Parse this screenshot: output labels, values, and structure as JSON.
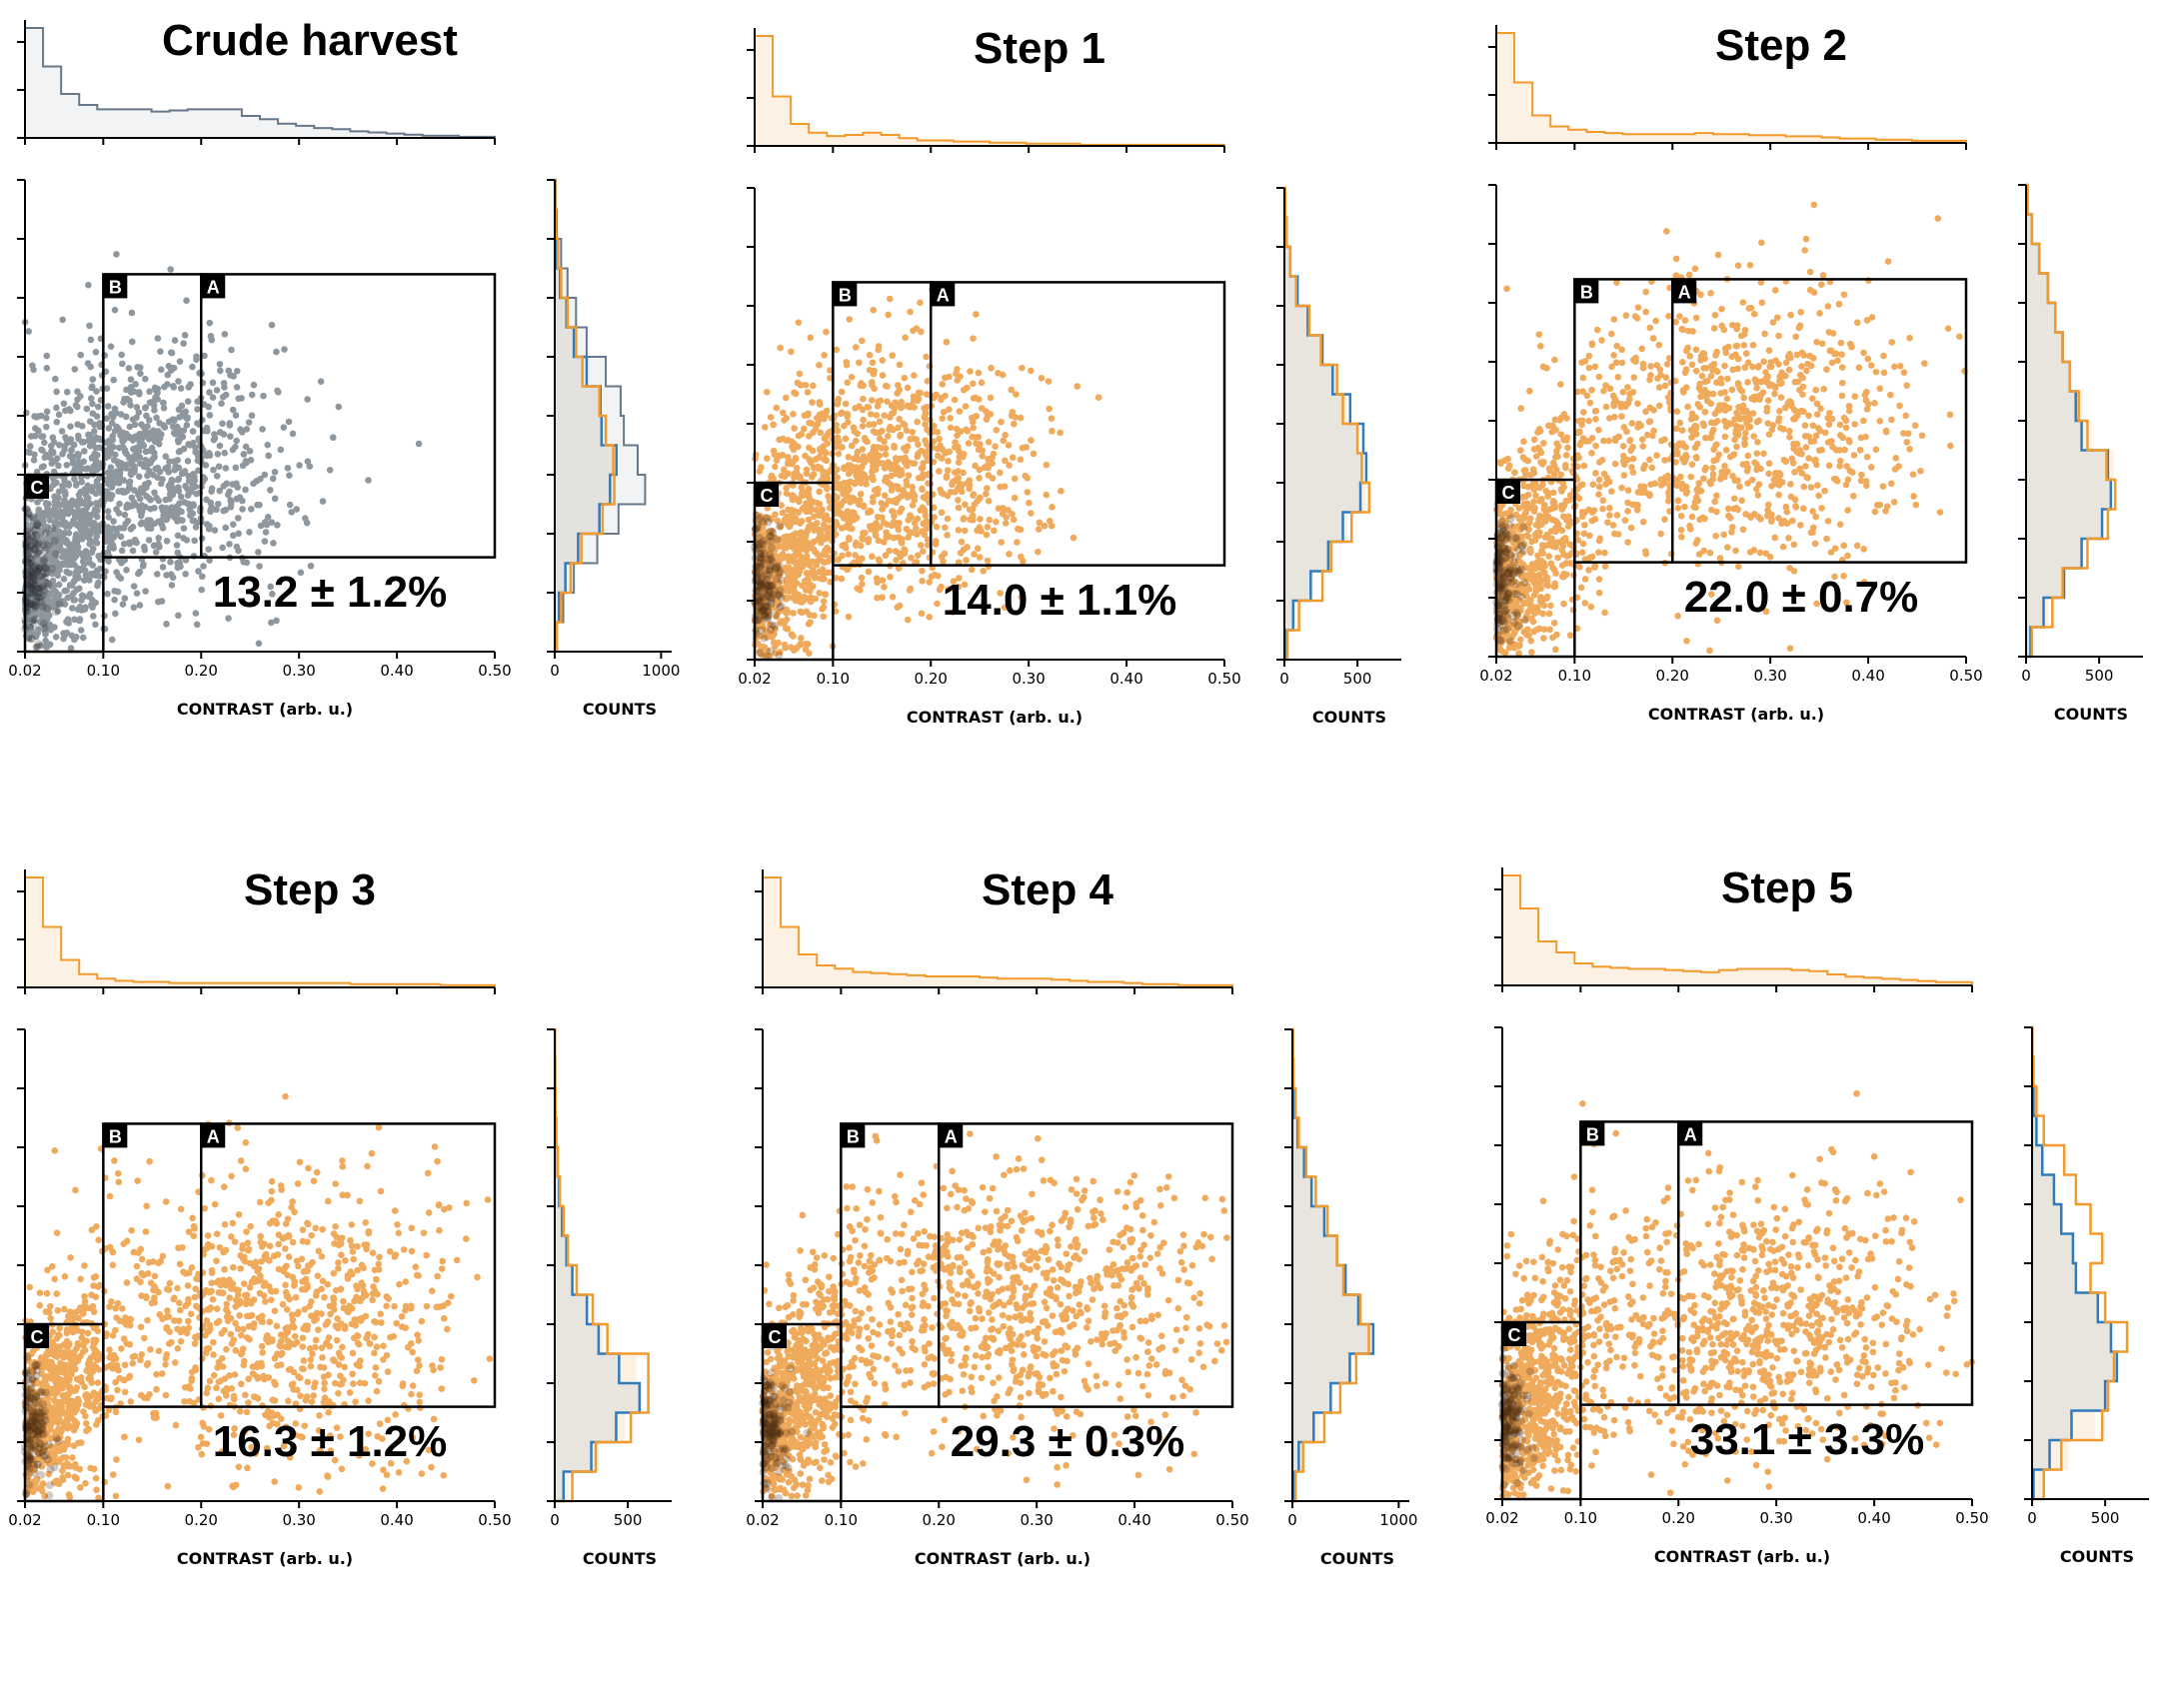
{
  "chart_data": [
    {
      "type": "scatter",
      "title": "Crude harvest",
      "annotation": "13.2 ± 1.2%",
      "xlabel": "CONTRAST (arb. u.)",
      "side_xlabel": "COUNTS",
      "xticks": [
        "0.02",
        "0.10",
        "0.20",
        "0.30",
        "0.40",
        "0.50"
      ],
      "xlim": [
        0.02,
        0.5
      ],
      "side_ticks": [
        "0",
        "1000"
      ],
      "side_max": 1100,
      "color": "#8f979e",
      "line": "#66788a",
      "fill": "#f1f3f5",
      "side_fill": "#e4e2de",
      "cloud": {
        "cx": 0.15,
        "cy": 3.1,
        "sx": 0.07,
        "sy": 1.1
      },
      "top_hist": [
        1,
        0.65,
        0.4,
        0.3,
        0.26,
        0.26,
        0.26,
        0.24,
        0.25,
        0.26,
        0.26,
        0.26,
        0.2,
        0.17,
        0.13,
        0.11,
        0.09,
        0.08,
        0.06,
        0.05,
        0.04,
        0.03,
        0.02,
        0.02,
        0.01,
        0.01
      ],
      "side_gray": [
        20,
        80,
        180,
        400,
        600,
        850,
        780,
        650,
        620,
        480,
        300,
        200,
        120,
        60,
        20,
        10
      ],
      "side_orange": [
        20,
        60,
        150,
        250,
        450,
        560,
        550,
        480,
        420,
        260,
        200,
        120,
        60,
        30,
        10,
        5
      ],
      "side_blue": [
        10,
        40,
        100,
        220,
        420,
        520,
        580,
        440,
        430,
        300,
        180,
        110,
        50,
        20,
        8,
        4
      ]
    },
    {
      "type": "scatter",
      "title": "Step 1",
      "annotation": "14.0 ± 1.1%",
      "xlabel": "CONTRAST (arb. u.)",
      "side_xlabel": "COUNTS",
      "xticks": [
        "0.02",
        "0.10",
        "0.20",
        "0.30",
        "0.40",
        "0.50"
      ],
      "xlim": [
        0.02,
        0.5
      ],
      "side_ticks": [
        "0",
        "500"
      ],
      "side_max": 800,
      "color": "#f0aa5c",
      "line": "#f39a2b",
      "fill": "#fdf1e4",
      "side_fill": "#e8e4de",
      "cloud": {
        "cx": 0.16,
        "cy": 3.1,
        "sx": 0.07,
        "sy": 1.1
      },
      "top_hist": [
        1,
        0.45,
        0.2,
        0.12,
        0.09,
        0.1,
        0.12,
        0.1,
        0.07,
        0.05,
        0.05,
        0.04,
        0.04,
        0.03,
        0.03,
        0.02,
        0.02,
        0.02,
        0.01,
        0.01,
        0.01,
        0.01,
        0.01,
        0.01,
        0.01,
        0.01
      ],
      "side_gray": [
        20,
        80,
        200,
        330,
        430,
        560,
        520,
        470,
        430,
        350,
        230,
        160,
        90,
        40,
        15,
        5
      ],
      "side_orange": [
        20,
        100,
        260,
        320,
        460,
        580,
        530,
        500,
        400,
        360,
        250,
        170,
        80,
        40,
        15,
        5
      ],
      "side_blue": [
        10,
        60,
        180,
        300,
        400,
        520,
        560,
        540,
        450,
        330,
        260,
        160,
        90,
        40,
        15,
        5
      ]
    },
    {
      "type": "scatter",
      "title": "Step 2",
      "annotation": "22.0 ± 0.7%",
      "xlabel": "CONTRAST (arb. u.)",
      "side_xlabel": "COUNTS",
      "xticks": [
        "0.02",
        "0.10",
        "0.20",
        "0.30",
        "0.40",
        "0.50"
      ],
      "xlim": [
        0.02,
        0.5
      ],
      "side_ticks": [
        "0",
        "500"
      ],
      "side_max": 800,
      "color": "#f0aa5c",
      "line": "#f39a2b",
      "fill": "#fdf1e4",
      "side_fill": "#e8e4de",
      "cloud": {
        "cx": 0.27,
        "cy": 3.9,
        "sx": 0.09,
        "sy": 1.2
      },
      "top_hist": [
        1,
        0.55,
        0.25,
        0.15,
        0.12,
        0.1,
        0.09,
        0.08,
        0.08,
        0.08,
        0.08,
        0.09,
        0.08,
        0.08,
        0.07,
        0.07,
        0.06,
        0.06,
        0.05,
        0.04,
        0.04,
        0.03,
        0.03,
        0.02,
        0.02,
        0.02
      ],
      "side_gray": [
        30,
        150,
        250,
        380,
        480,
        560,
        600,
        450,
        380,
        300,
        250,
        200,
        150,
        90,
        40,
        10
      ],
      "side_orange": [
        40,
        180,
        250,
        420,
        560,
        610,
        550,
        420,
        360,
        300,
        250,
        200,
        150,
        90,
        40,
        10
      ],
      "side_blue": [
        30,
        120,
        260,
        380,
        520,
        580,
        560,
        380,
        340,
        300,
        250,
        200,
        150,
        90,
        40,
        10
      ]
    },
    {
      "type": "scatter",
      "title": "Step 3",
      "annotation": "16.3 ± 1.2%",
      "xlabel": "CONTRAST (arb. u.)",
      "side_xlabel": "COUNTS",
      "xticks": [
        "0.02",
        "0.10",
        "0.20",
        "0.30",
        "0.40",
        "0.50"
      ],
      "xlim": [
        0.02,
        0.5
      ],
      "side_ticks": [
        "0",
        "500"
      ],
      "side_max": 800,
      "color": "#f0aa5c",
      "line": "#f39a2b",
      "fill": "#fdf1e4",
      "side_fill": "#e8e4de",
      "cloud": {
        "cx": 0.28,
        "cy": 3.1,
        "sx": 0.09,
        "sy": 1.2
      },
      "top_hist": [
        1,
        0.55,
        0.25,
        0.12,
        0.08,
        0.06,
        0.05,
        0.05,
        0.04,
        0.04,
        0.04,
        0.04,
        0.04,
        0.04,
        0.04,
        0.04,
        0.04,
        0.04,
        0.03,
        0.03,
        0.03,
        0.03,
        0.03,
        0.02,
        0.02,
        0.02
      ],
      "side_gray": [
        100,
        300,
        480,
        600,
        560,
        330,
        220,
        130,
        80,
        50,
        30,
        20,
        10,
        5,
        3,
        2
      ],
      "side_orange": [
        120,
        280,
        520,
        640,
        640,
        360,
        260,
        150,
        90,
        60,
        35,
        20,
        10,
        5,
        3,
        2
      ],
      "side_blue": [
        60,
        250,
        420,
        580,
        440,
        300,
        220,
        120,
        80,
        50,
        30,
        20,
        10,
        5,
        3,
        2
      ]
    },
    {
      "type": "scatter",
      "title": "Step 4",
      "annotation": "29.3 ± 0.3%",
      "xlabel": "CONTRAST (arb. u.)",
      "side_xlabel": "COUNTS",
      "xticks": [
        "0.02",
        "0.10",
        "0.20",
        "0.30",
        "0.40",
        "0.50"
      ],
      "xlim": [
        0.02,
        0.5
      ],
      "side_ticks": [
        "0",
        "1000"
      ],
      "side_max": 1100,
      "color": "#f0aa5c",
      "line": "#f39a2b",
      "fill": "#fdf1e4",
      "side_fill": "#e8e4de",
      "cloud": {
        "cx": 0.28,
        "cy": 3.3,
        "sx": 0.1,
        "sy": 1.1
      },
      "top_hist": [
        1,
        0.55,
        0.3,
        0.2,
        0.17,
        0.14,
        0.13,
        0.12,
        0.11,
        0.1,
        0.1,
        0.1,
        0.09,
        0.08,
        0.08,
        0.08,
        0.07,
        0.06,
        0.05,
        0.05,
        0.04,
        0.03,
        0.03,
        0.02,
        0.02,
        0.02
      ],
      "side_gray": [
        30,
        120,
        260,
        380,
        560,
        700,
        600,
        450,
        380,
        300,
        200,
        120,
        60,
        30,
        10,
        5
      ],
      "side_orange": [
        30,
        100,
        300,
        450,
        600,
        720,
        640,
        480,
        420,
        330,
        220,
        130,
        60,
        30,
        10,
        5
      ],
      "side_blue": [
        20,
        60,
        200,
        360,
        540,
        760,
        620,
        500,
        420,
        300,
        180,
        110,
        50,
        20,
        8,
        4
      ]
    },
    {
      "type": "scatter",
      "title": "Step 5",
      "annotation": "33.1 ± 3.3%",
      "xlabel": "CONTRAST (arb. u.)",
      "side_xlabel": "COUNTS",
      "xticks": [
        "0.02",
        "0.10",
        "0.20",
        "0.30",
        "0.40",
        "0.50"
      ],
      "xlim": [
        0.02,
        0.5
      ],
      "side_ticks": [
        "0",
        "500"
      ],
      "side_max": 800,
      "color": "#f0aa5c",
      "line": "#f39a2b",
      "fill": "#fdf1e4",
      "side_fill": "#e8e4de",
      "cloud": {
        "cx": 0.27,
        "cy": 3.0,
        "sx": 0.1,
        "sy": 1.2
      },
      "top_hist": [
        1,
        0.7,
        0.4,
        0.3,
        0.2,
        0.17,
        0.16,
        0.15,
        0.15,
        0.14,
        0.13,
        0.12,
        0.14,
        0.15,
        0.15,
        0.15,
        0.14,
        0.13,
        0.1,
        0.08,
        0.07,
        0.06,
        0.05,
        0.04,
        0.03,
        0.03
      ],
      "side_gray": [
        80,
        250,
        430,
        500,
        550,
        520,
        400,
        300,
        280,
        200,
        150,
        70,
        30,
        10,
        5,
        2
      ],
      "side_orange": [
        80,
        200,
        480,
        520,
        560,
        650,
        500,
        400,
        480,
        400,
        300,
        220,
        80,
        30,
        10,
        2
      ],
      "side_blue": [
        10,
        120,
        270,
        500,
        580,
        540,
        450,
        300,
        280,
        200,
        150,
        70,
        30,
        10,
        5,
        2
      ]
    }
  ]
}
